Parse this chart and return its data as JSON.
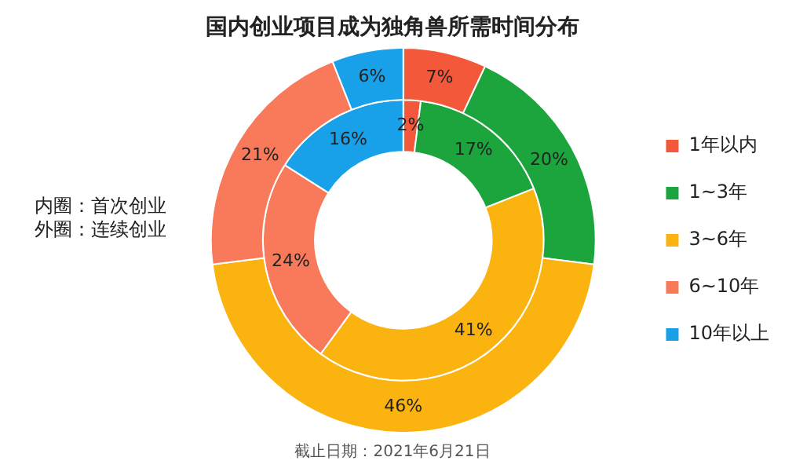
{
  "chart_data": {
    "type": "donut",
    "title": "国内创业项目成为独角兽所需时间分布",
    "categories": [
      "1年以内",
      "1~3年",
      "3~6年",
      "6~10年",
      "10年以上"
    ],
    "series": [
      {
        "colors": [
          "#f4583b",
          "#1ba53c",
          "#fbb30f",
          "#f87a5a",
          "#18a0e8"
        ],
        "values": [
          7,
          20,
          46,
          21,
          6
        ],
        "value_labels": [
          "7%",
          "20%",
          "46%",
          "21%",
          "6%"
        ]
      },
      {
        "colors": [
          "#f4583b",
          "#1ba53c",
          "#fbb30f",
          "#f87a5a",
          "#18a0e8"
        ],
        "values": [
          2,
          17,
          41,
          24,
          16
        ],
        "value_labels": [
          "2%",
          "17%",
          "41%",
          "24%",
          "16%"
        ]
      }
    ],
    "legend": "right",
    "annotations": [
      "内圈：首次创业",
      "外圈：连续创业",
      "截止日期：2021年6月21日"
    ]
  }
}
